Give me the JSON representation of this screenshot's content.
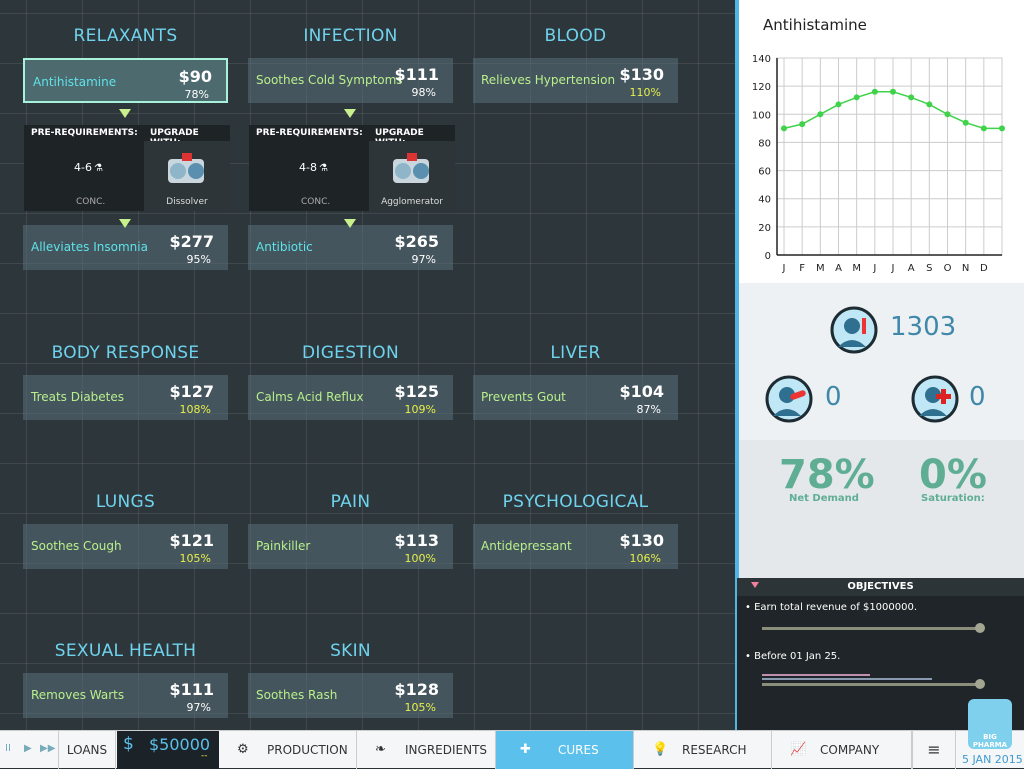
{
  "categories": [
    {
      "title": "RELAXANTS",
      "items": [
        {
          "name": "Antihistamine",
          "price": "$90",
          "percent": "78%",
          "name_color": "#5ee3ea",
          "percent_color": "#ffffff",
          "selected": true
        },
        {
          "name": "Alleviates Insomnia",
          "price": "$277",
          "percent": "95%",
          "name_color": "#5ee3ea",
          "percent_color": "#ffffff"
        }
      ],
      "upgrade": {
        "requirements_label": "PRE-REQUIREMENTS:",
        "upgrade_label": "UPGRADE WITH:",
        "concentration": "4-6",
        "concentration_label": "CONC.",
        "machine": "Dissolver"
      }
    },
    {
      "title": "INFECTION",
      "items": [
        {
          "name": "Soothes Cold Symptoms",
          "price": "$111",
          "percent": "98%",
          "name_color": "#b8f08c",
          "percent_color": "#ffffff"
        },
        {
          "name": "Antibiotic",
          "price": "$265",
          "percent": "97%",
          "name_color": "#5ee3ea",
          "percent_color": "#ffffff"
        }
      ],
      "upgrade": {
        "requirements_label": "PRE-REQUIREMENTS:",
        "upgrade_label": "UPGRADE WITH:",
        "concentration": "4-8",
        "concentration_label": "CONC.",
        "machine": "Agglomerator"
      }
    },
    {
      "title": "BLOOD",
      "items": [
        {
          "name": "Relieves Hypertension",
          "price": "$130",
          "percent": "110%",
          "name_color": "#b8f08c",
          "percent_color": "#e6f04a"
        }
      ]
    },
    {
      "title": "BODY RESPONSE",
      "items": [
        {
          "name": "Treats Diabetes",
          "price": "$127",
          "percent": "108%",
          "name_color": "#b8f08c",
          "percent_color": "#e6f04a"
        }
      ]
    },
    {
      "title": "DIGESTION",
      "items": [
        {
          "name": "Calms Acid Reflux",
          "price": "$125",
          "percent": "109%",
          "name_color": "#b8f08c",
          "percent_color": "#e6f04a"
        }
      ]
    },
    {
      "title": "LIVER",
      "items": [
        {
          "name": "Prevents Gout",
          "price": "$104",
          "percent": "87%",
          "name_color": "#b8f08c",
          "percent_color": "#ffffff"
        }
      ]
    },
    {
      "title": "LUNGS",
      "items": [
        {
          "name": "Soothes Cough",
          "price": "$121",
          "percent": "105%",
          "name_color": "#b8f08c",
          "percent_color": "#e6f04a"
        }
      ]
    },
    {
      "title": "PAIN",
      "items": [
        {
          "name": "Painkiller",
          "price": "$113",
          "percent": "100%",
          "name_color": "#b8f08c",
          "percent_color": "#e6f04a"
        }
      ]
    },
    {
      "title": "PSYCHOLOGICAL",
      "items": [
        {
          "name": "Antidepressant",
          "price": "$130",
          "percent": "106%",
          "name_color": "#b8f08c",
          "percent_color": "#e6f04a"
        }
      ]
    },
    {
      "title": "SEXUAL HEALTH",
      "items": [
        {
          "name": "Removes Warts",
          "price": "$111",
          "percent": "97%",
          "name_color": "#b8f08c",
          "percent_color": "#ffffff"
        }
      ]
    },
    {
      "title": "SKIN",
      "items": [
        {
          "name": "Soothes Rash",
          "price": "$128",
          "percent": "105%",
          "name_color": "#b8f08c",
          "percent_color": "#e6f04a"
        }
      ]
    }
  ],
  "chart": {
    "type": "line",
    "title": "Antihistamine",
    "categories": [
      "J",
      "F",
      "M",
      "A",
      "M",
      "J",
      "J",
      "A",
      "S",
      "O",
      "N",
      "D",
      null
    ],
    "values": [
      90,
      93,
      100,
      107,
      112,
      116,
      116,
      112,
      107,
      100,
      94,
      90,
      90
    ],
    "color": "#3fd24a",
    "ylim": [
      0,
      140
    ],
    "yticks": [
      0,
      20,
      40,
      60,
      80,
      100,
      120,
      140
    ],
    "grid": true
  },
  "stats": {
    "patients": "1303",
    "side_effects": "0",
    "treated": "0",
    "net_demand": "78%",
    "net_demand_label": "Net Demand",
    "saturation": "0%",
    "saturation_label": "Saturation:"
  },
  "objectives": {
    "title": "OBJECTIVES",
    "items": [
      "Earn total revenue of $1000000.",
      "Before 01 Jan 25."
    ]
  },
  "toolbar": {
    "loans": "LOANS",
    "currency": "$",
    "money": "$50000",
    "money_change": "--",
    "tabs": [
      "PRODUCTION",
      "INGREDIENTS",
      "CURES",
      "RESEARCH",
      "COMPANY"
    ],
    "active_tab": "CURES",
    "date": "5 JAN 2015",
    "logo": "BIG PHARMA"
  }
}
